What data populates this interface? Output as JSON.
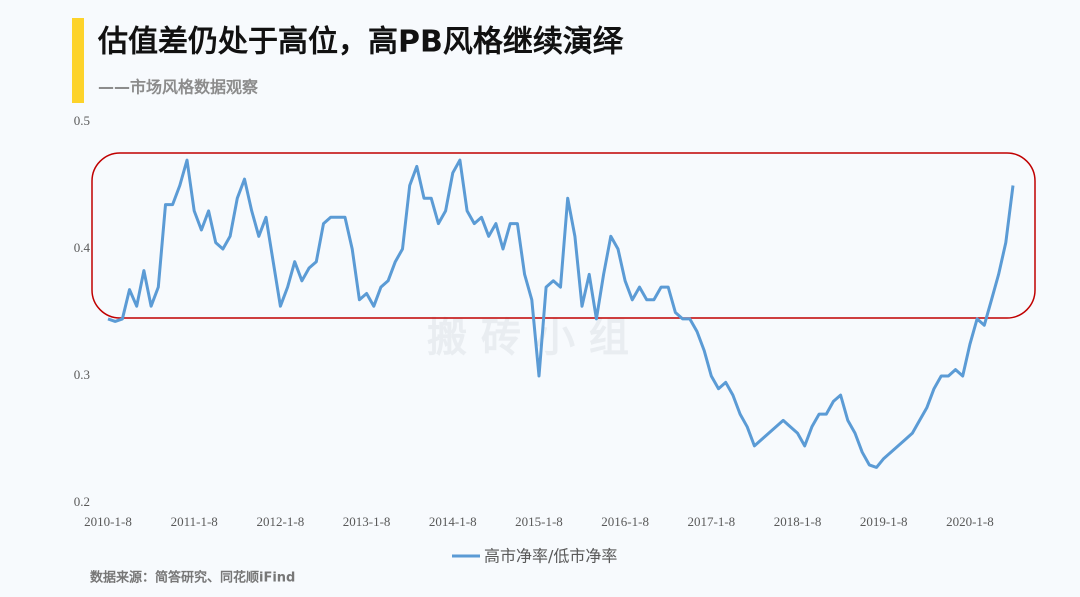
{
  "title": "估值差仍处于高位，高PB风格继续演绎",
  "subtitle": "——市场风格数据观察",
  "source": "数据来源：简答研究、同花顺iFind",
  "watermark": "搬 砖 小 组",
  "chart_data": {
    "type": "line",
    "categories": [
      "2010-1-8",
      null,
      null,
      null,
      null,
      null,
      null,
      null,
      null,
      null,
      null,
      null,
      "2011-1-8",
      null,
      null,
      null,
      null,
      null,
      null,
      null,
      null,
      null,
      null,
      null,
      "2012-1-8",
      null,
      null,
      null,
      null,
      null,
      null,
      null,
      null,
      null,
      null,
      null,
      "2013-1-8",
      null,
      null,
      null,
      null,
      null,
      null,
      null,
      null,
      null,
      null,
      null,
      "2014-1-8",
      null,
      null,
      null,
      null,
      null,
      null,
      null,
      null,
      null,
      null,
      null,
      "2015-1-8",
      null,
      null,
      null,
      null,
      null,
      null,
      null,
      null,
      null,
      null,
      null,
      "2016-1-8",
      null,
      null,
      null,
      null,
      null,
      null,
      null,
      null,
      null,
      null,
      null,
      "2017-1-8",
      null,
      null,
      null,
      null,
      null,
      null,
      null,
      null,
      null,
      null,
      null,
      "2018-1-8",
      null,
      null,
      null,
      null,
      null,
      null,
      null,
      null,
      null,
      null,
      null,
      "2019-1-8",
      null,
      null,
      null,
      null,
      null,
      null,
      null,
      null,
      null,
      null,
      null,
      "2020-1-8",
      null,
      null,
      null,
      null,
      null,
      null
    ],
    "series": [
      {
        "name": "高市净率/低市净率",
        "color": "#5b9bd5",
        "values": [
          0.345,
          0.343,
          0.345,
          0.368,
          0.355,
          0.383,
          0.355,
          0.37,
          0.435,
          0.435,
          0.45,
          0.47,
          0.43,
          0.415,
          0.43,
          0.405,
          0.4,
          0.41,
          0.44,
          0.455,
          0.43,
          0.41,
          0.425,
          0.39,
          0.355,
          0.37,
          0.39,
          0.375,
          0.385,
          0.39,
          0.42,
          0.425,
          0.425,
          0.425,
          0.4,
          0.36,
          0.365,
          0.355,
          0.37,
          0.375,
          0.39,
          0.4,
          0.45,
          0.465,
          0.44,
          0.44,
          0.42,
          0.43,
          0.46,
          0.47,
          0.43,
          0.42,
          0.425,
          0.41,
          0.42,
          0.4,
          0.42,
          0.42,
          0.38,
          0.36,
          0.3,
          0.37,
          0.375,
          0.37,
          0.44,
          0.41,
          0.355,
          0.38,
          0.345,
          0.38,
          0.41,
          0.4,
          0.375,
          0.36,
          0.37,
          0.36,
          0.36,
          0.37,
          0.37,
          0.35,
          0.345,
          0.345,
          0.335,
          0.32,
          0.3,
          0.29,
          0.295,
          0.285,
          0.27,
          0.26,
          0.245,
          0.25,
          0.255,
          0.26,
          0.265,
          0.26,
          0.255,
          0.245,
          0.26,
          0.27,
          0.27,
          0.28,
          0.285,
          0.265,
          0.255,
          0.24,
          0.23,
          0.228,
          0.235,
          0.24,
          0.245,
          0.25,
          0.255,
          0.265,
          0.275,
          0.29,
          0.3,
          0.3,
          0.305,
          0.3,
          0.325,
          0.345,
          0.34,
          0.36,
          0.38,
          0.405,
          0.45
        ]
      }
    ],
    "ylim": [
      0.2,
      0.5
    ],
    "yticks": [
      0.2,
      0.3,
      0.4,
      0.5
    ],
    "grid": false,
    "legend": "bottom"
  }
}
